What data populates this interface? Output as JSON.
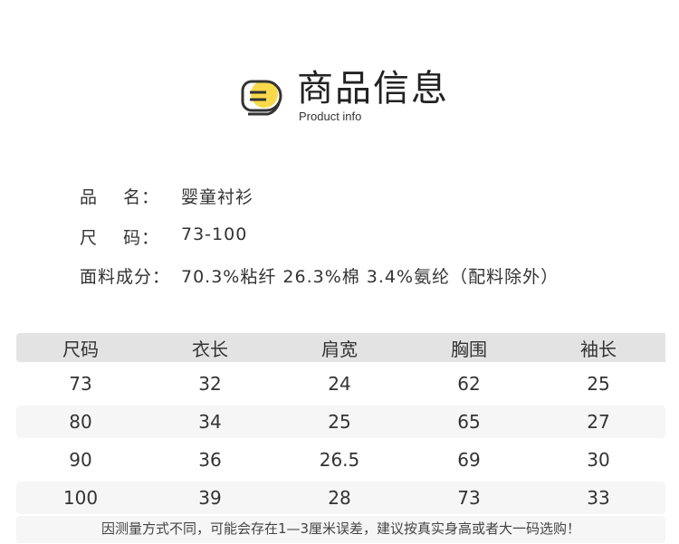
{
  "header": {
    "title": "商品信息",
    "subtitle": "Product info",
    "accent": "#f8d94a"
  },
  "info": [
    {
      "label": "品    名：",
      "value": "婴童衬衫"
    },
    {
      "label": "尺    码：",
      "value": "73-100"
    },
    {
      "label": "面料成分：",
      "value": "70.3%粘纤 26.3%棉 3.4%氨纶（配料除外）"
    }
  ],
  "table": {
    "headers": [
      "尺码",
      "衣长",
      "肩宽",
      "胸围",
      "袖长"
    ],
    "rows": [
      [
        "73",
        "32",
        "24",
        "62",
        "25"
      ],
      [
        "80",
        "34",
        "25",
        "65",
        "27"
      ],
      [
        "90",
        "36",
        "26.5",
        "69",
        "30"
      ],
      [
        "100",
        "39",
        "28",
        "73",
        "33"
      ]
    ]
  },
  "note": "因测量方式不同，可能会存在1—3厘米误差，建议按真实身高或者大一码选购！"
}
